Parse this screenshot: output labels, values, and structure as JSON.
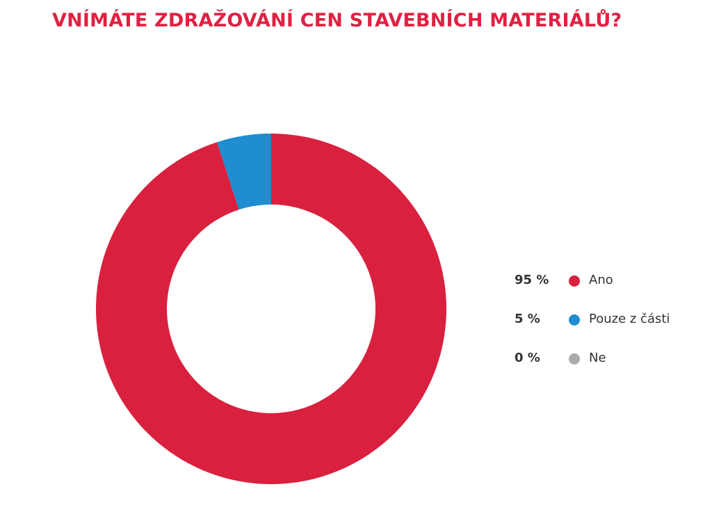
{
  "title": "VNÍMÁTE ZDRAŽOVÁNÍ CEN STAVEBNÍCH MATERIÁLŮ?",
  "colors": {
    "title": "#e02142",
    "ano": "#d9213f",
    "pouze": "#1f8dd0",
    "ne": "#aaaaaa"
  },
  "chart_data": {
    "type": "pie",
    "variant": "donut",
    "title": "VNÍMÁTE ZDRAŽOVÁNÍ CEN STAVEBNÍCH MATERIÁLŮ?",
    "slices": [
      {
        "label": "Ano",
        "value": 95,
        "value_label": "95 %",
        "color": "#d9213f"
      },
      {
        "label": "Pouze z části",
        "value": 5,
        "value_label": "5 %",
        "color": "#1f8dd0"
      },
      {
        "label": "Ne",
        "value": 0,
        "value_label": "0 %",
        "color": "#aaaaaa"
      }
    ],
    "legend_position": "right"
  }
}
